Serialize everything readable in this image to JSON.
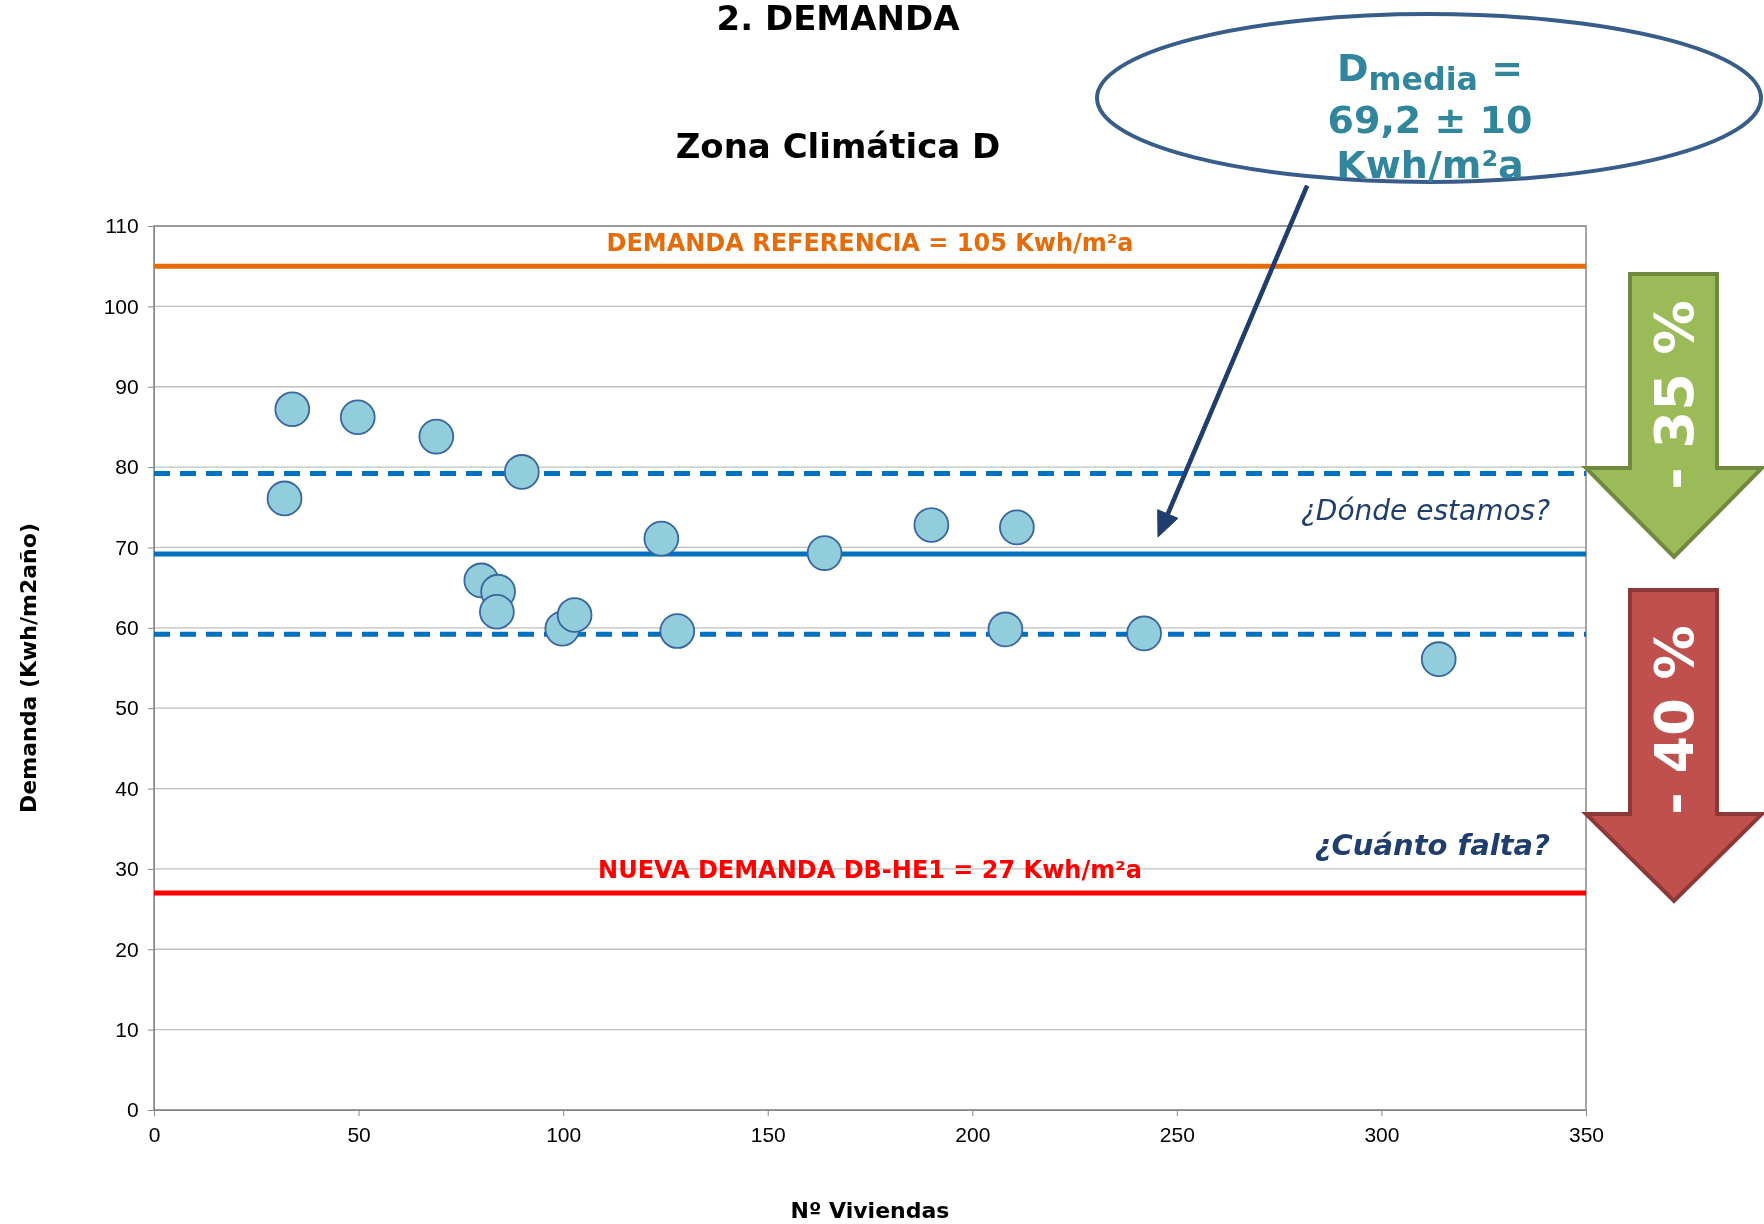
{
  "chart_data": {
    "type": "scatter",
    "title": "2. DEMANDA",
    "subtitle": "Zona Climática D",
    "xlabel": "Nº Viviendas",
    "ylabel": "Demanda (Kwh/m2año)",
    "x": [
      33.8,
      49.8,
      69.0,
      89.9,
      31.9,
      124.0,
      163.9,
      190.0,
      210.9,
      80.0,
      84.1,
      83.8,
      99.8,
      102.8,
      127.9,
      208.1,
      242.0,
      314.0
    ],
    "series": [
      {
        "color": "#92cddc",
        "values": [
          87.2,
          86.2,
          83.8,
          79.4,
          76.1,
          71.1,
          69.3,
          72.8,
          72.5,
          65.9,
          64.5,
          62.0,
          59.9,
          61.6,
          59.6,
          59.8,
          59.3,
          56.1
        ]
      }
    ],
    "marker": "circle",
    "grid": "y",
    "xlim": [
      0,
      350
    ],
    "xticks": [
      0,
      50,
      100,
      150,
      200,
      250,
      300,
      350
    ],
    "ylim": [
      0,
      110
    ],
    "yticks": [
      0,
      10,
      20,
      30,
      40,
      50,
      60,
      70,
      80,
      90,
      100,
      110
    ],
    "ref_lines": [
      {
        "axis": "y",
        "value": 105,
        "label": "DEMANDA REFERENCIA = 105 Kwh/m²a",
        "color": "#e46c0a",
        "line_style": "solid"
      },
      {
        "axis": "y",
        "value": 79.2,
        "color": "#0070c0",
        "line_style": "dashed"
      },
      {
        "axis": "y",
        "value": 69.2,
        "color": "#0070c0",
        "line_style": "solid"
      },
      {
        "axis": "y",
        "value": 59.2,
        "color": "#0070c0",
        "line_style": "dashed"
      },
      {
        "axis": "y",
        "value": 27,
        "label": "NUEVA DEMANDA DB-HE1 = 27 Kwh/m²a",
        "color": "#ff0000",
        "line_style": "solid"
      }
    ],
    "annotations": [
      "D$_{media}$ = 69,2 ± 10 Kwh/m²a",
      "¿Dónde estamos?",
      "¿Cuánto falta?",
      "- 35 %",
      "- 40 %"
    ]
  }
}
